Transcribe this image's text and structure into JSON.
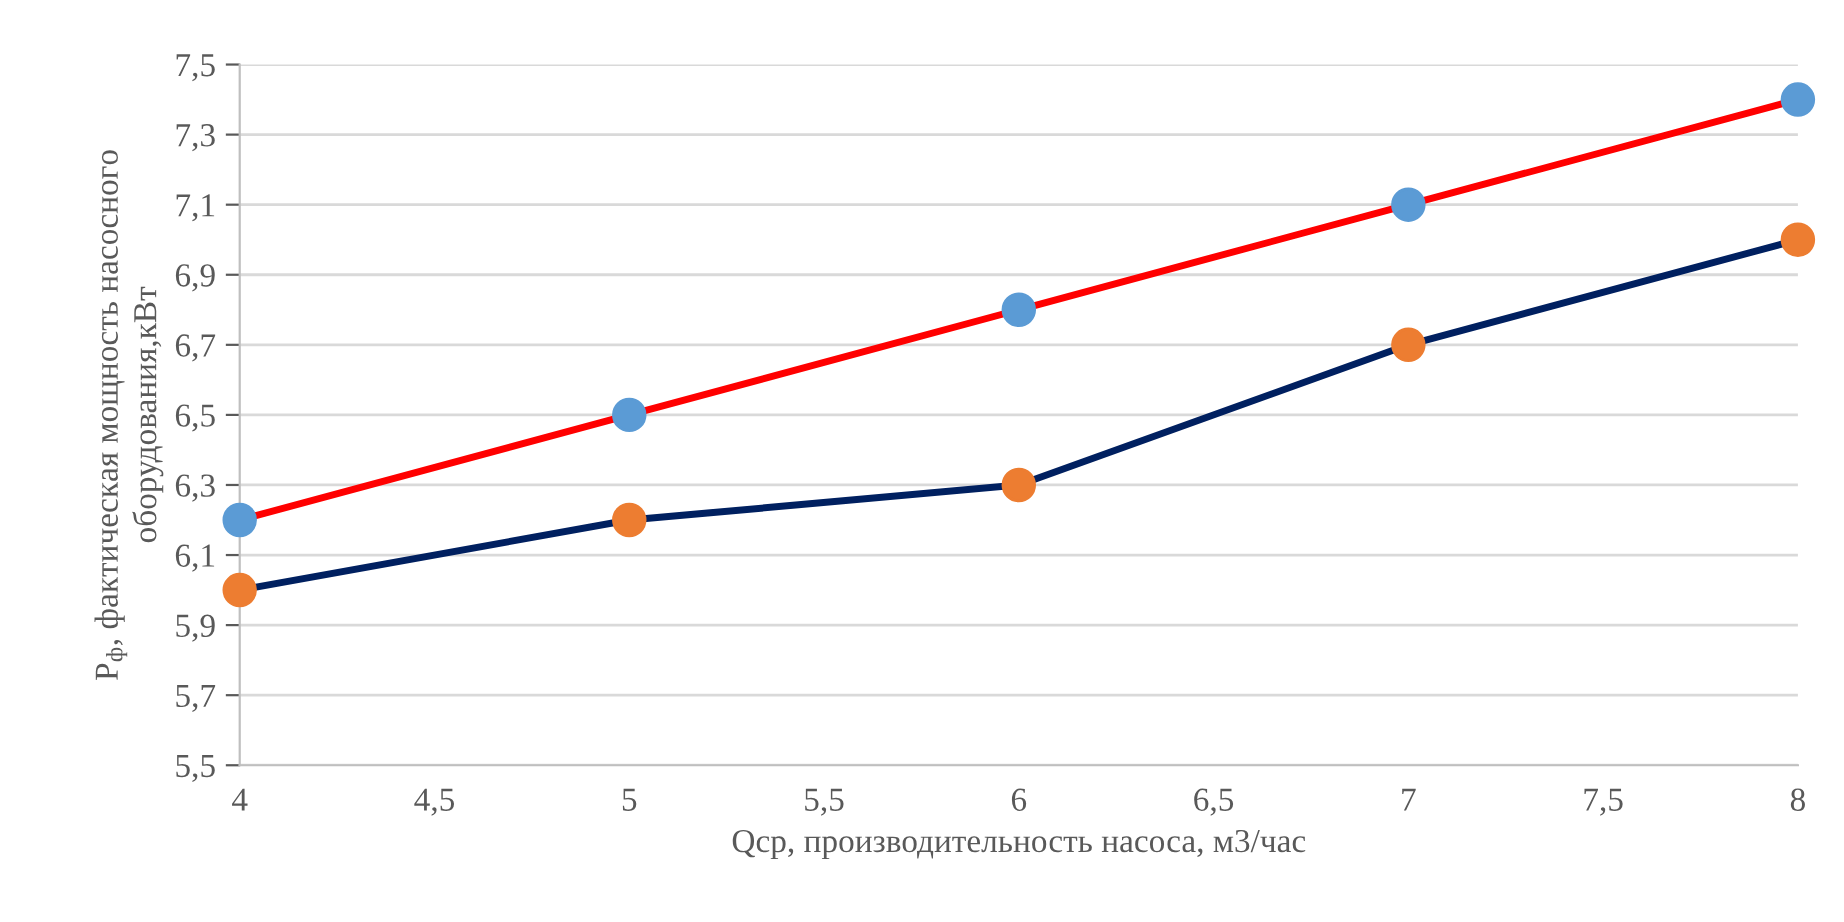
{
  "chart_data": {
    "type": "line",
    "xlabel": "Qср, производительность насоса, м3/час",
    "ylabel": "P$_{ф}$, фактическая мощность насосного\nоборудования,кВт",
    "x": [
      4,
      5,
      6,
      7,
      8
    ],
    "series": [
      {
        "color": "#ff0000",
        "colors": [
          "#5b9bd5",
          "#5b9bd5",
          "#5b9bd5",
          "#5b9bd5",
          "#5b9bd5"
        ],
        "values": [
          6.2,
          6.5,
          6.8,
          7.1,
          7.4
        ]
      },
      {
        "color": "#002060",
        "colors": [
          "#ed7d31",
          "#ed7d31",
          "#ed7d31",
          "#ed7d31",
          "#ed7d31"
        ],
        "values": [
          6.0,
          6.2,
          6.3,
          6.7,
          7.0
        ]
      }
    ],
    "xlim": [
      4,
      8
    ],
    "xticks": [
      4,
      {
        "value": 4.5,
        "label": "4,5"
      },
      5,
      {
        "value": 5.5,
        "label": "5,5"
      },
      6,
      {
        "value": 6.5,
        "label": "6,5"
      },
      7,
      {
        "value": 7.5,
        "label": "7,5"
      },
      8
    ],
    "ylim": [
      5.5,
      7.5
    ],
    "yticks": [
      {
        "value": 5.5,
        "label": "5,5"
      },
      {
        "value": 5.7,
        "label": "5,7"
      },
      {
        "value": 5.9,
        "label": "5,9"
      },
      {
        "value": 6.1,
        "label": "6,1"
      },
      {
        "value": 6.3,
        "label": "6,3"
      },
      {
        "value": 6.5,
        "label": "6,5"
      },
      {
        "value": 6.7,
        "label": "6,7"
      },
      {
        "value": 6.9,
        "label": "6,9"
      },
      {
        "value": 7.1,
        "label": "7,1"
      },
      {
        "value": 7.3,
        "label": "7,3"
      },
      {
        "value": 7.5,
        "label": "7,5"
      }
    ],
    "grid": "y",
    "marker": "circle",
    "line_style": "solid"
  }
}
